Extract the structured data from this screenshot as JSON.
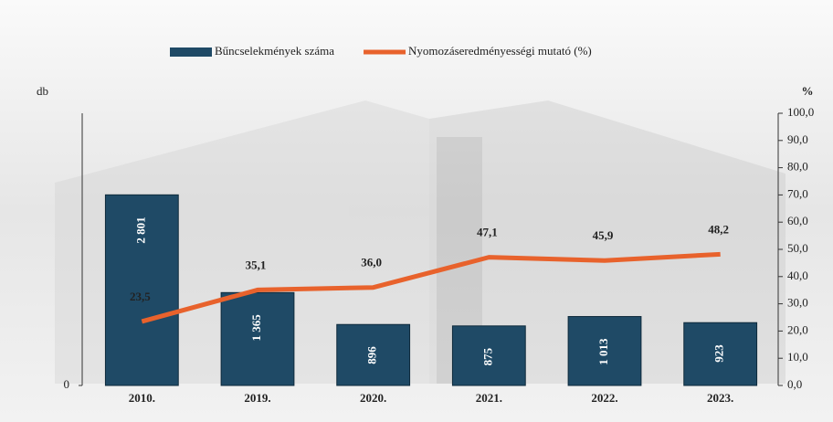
{
  "chart_data": {
    "type": "bar",
    "y_label": "db",
    "y2_label": "%",
    "categories": [
      "2010.",
      "2019.",
      "2020.",
      "2021.",
      "2022.",
      "2023."
    ],
    "series": [
      {
        "name": "Bűncselekmények száma",
        "type": "bar",
        "color": "#1f4a66",
        "values": [
          2801,
          1365,
          896,
          875,
          1013,
          923
        ],
        "value_labels": [
          "2 801",
          "1 365",
          "896",
          "875",
          "1 013",
          "923"
        ]
      },
      {
        "name": "Nyomozáseredményességi mutató (%)",
        "type": "line",
        "axis": "y2",
        "color": "#e8622c",
        "values": [
          23.5,
          35.1,
          36.0,
          47.1,
          45.9,
          48.2
        ],
        "value_labels": [
          "23,5",
          "35,1",
          "36,0",
          "47,1",
          "45,9",
          "48,2"
        ]
      }
    ],
    "ylim": [
      0,
      4000
    ],
    "yticks": [
      0
    ],
    "y2lim": [
      0,
      100
    ],
    "y2ticks": [
      {
        "value": 0,
        "label": "0,0"
      },
      {
        "value": 10,
        "label": "10,0"
      },
      {
        "value": 20,
        "label": "20,0"
      },
      {
        "value": 30,
        "label": "30,0"
      },
      {
        "value": 40,
        "label": "40,0"
      },
      {
        "value": 50,
        "label": "50,0"
      },
      {
        "value": 60,
        "label": "60,0"
      },
      {
        "value": 70,
        "label": "70,0"
      },
      {
        "value": 80,
        "label": "80,0"
      },
      {
        "value": 90,
        "label": "90,0"
      },
      {
        "value": 100,
        "label": "100,0"
      }
    ],
    "legend": "top"
  }
}
